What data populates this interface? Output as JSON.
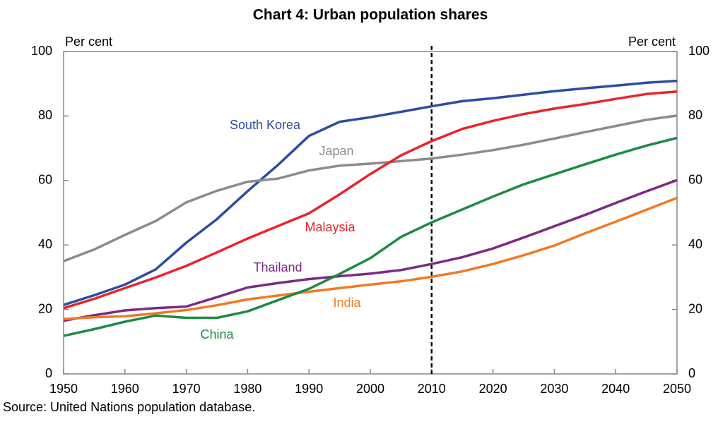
{
  "chart_data": {
    "type": "line",
    "title": "Chart 4:  Urban population shares",
    "y_label": "Per cent",
    "y2_label": "Per cent",
    "source": "Source: United Nations population database.",
    "x": [
      1950,
      1955,
      1960,
      1965,
      1970,
      1975,
      1980,
      1985,
      1990,
      1995,
      2000,
      2005,
      2010,
      2015,
      2020,
      2025,
      2030,
      2035,
      2040,
      2045,
      2050
    ],
    "xlim": [
      1950,
      2050
    ],
    "xticks": [
      1950,
      1960,
      1970,
      1980,
      1990,
      2000,
      2010,
      2020,
      2030,
      2040,
      2050
    ],
    "ylim": [
      0,
      100
    ],
    "yticks": [
      0,
      20,
      40,
      60,
      80,
      100
    ],
    "y2lim": [
      0,
      100
    ],
    "y2ticks": [
      0,
      20,
      40,
      60,
      80,
      100
    ],
    "vline_x": 2010,
    "series": [
      {
        "name": "South Korea",
        "color": "#2e4da0",
        "values": [
          21.4,
          24.4,
          27.7,
          32.4,
          40.7,
          48.0,
          56.7,
          64.9,
          73.8,
          78.2,
          79.6,
          81.3,
          83.0,
          84.6,
          85.5,
          86.6,
          87.7,
          88.6,
          89.4,
          90.3,
          90.9
        ]
      },
      {
        "name": "Japan",
        "color": "#8c8c8c",
        "values": [
          35.0,
          38.6,
          43.1,
          47.4,
          53.2,
          56.8,
          59.6,
          60.6,
          63.1,
          64.6,
          65.2,
          66.0,
          66.8,
          68.0,
          69.4,
          71.1,
          73.0,
          75.0,
          76.9,
          78.8,
          80.1
        ]
      },
      {
        "name": "Malaysia",
        "color": "#e8252a",
        "values": [
          20.4,
          23.3,
          26.6,
          29.9,
          33.5,
          37.7,
          42.0,
          45.9,
          49.8,
          55.7,
          62.0,
          67.8,
          72.2,
          76.0,
          78.5,
          80.6,
          82.3,
          83.7,
          85.3,
          86.8,
          87.6
        ]
      },
      {
        "name": "Thailand",
        "color": "#7b2b84",
        "values": [
          16.5,
          18.2,
          19.7,
          20.4,
          20.9,
          23.8,
          26.8,
          28.2,
          29.4,
          30.3,
          31.1,
          32.2,
          34.1,
          36.2,
          38.9,
          42.3,
          45.8,
          49.3,
          53.0,
          56.6,
          60.1
        ]
      },
      {
        "name": "India",
        "color": "#f07a25",
        "values": [
          17.0,
          17.6,
          17.9,
          18.8,
          19.8,
          21.3,
          23.1,
          24.3,
          25.5,
          26.6,
          27.7,
          28.7,
          30.1,
          31.8,
          34.1,
          36.8,
          39.8,
          43.6,
          47.2,
          50.9,
          54.6
        ]
      },
      {
        "name": "China",
        "color": "#1f8a44",
        "values": [
          11.8,
          13.9,
          16.2,
          18.1,
          17.4,
          17.4,
          19.4,
          22.9,
          26.4,
          31.0,
          35.9,
          42.5,
          47.0,
          51.0,
          55.0,
          58.8,
          61.9,
          65.0,
          68.0,
          70.8,
          73.2
        ]
      }
    ]
  }
}
